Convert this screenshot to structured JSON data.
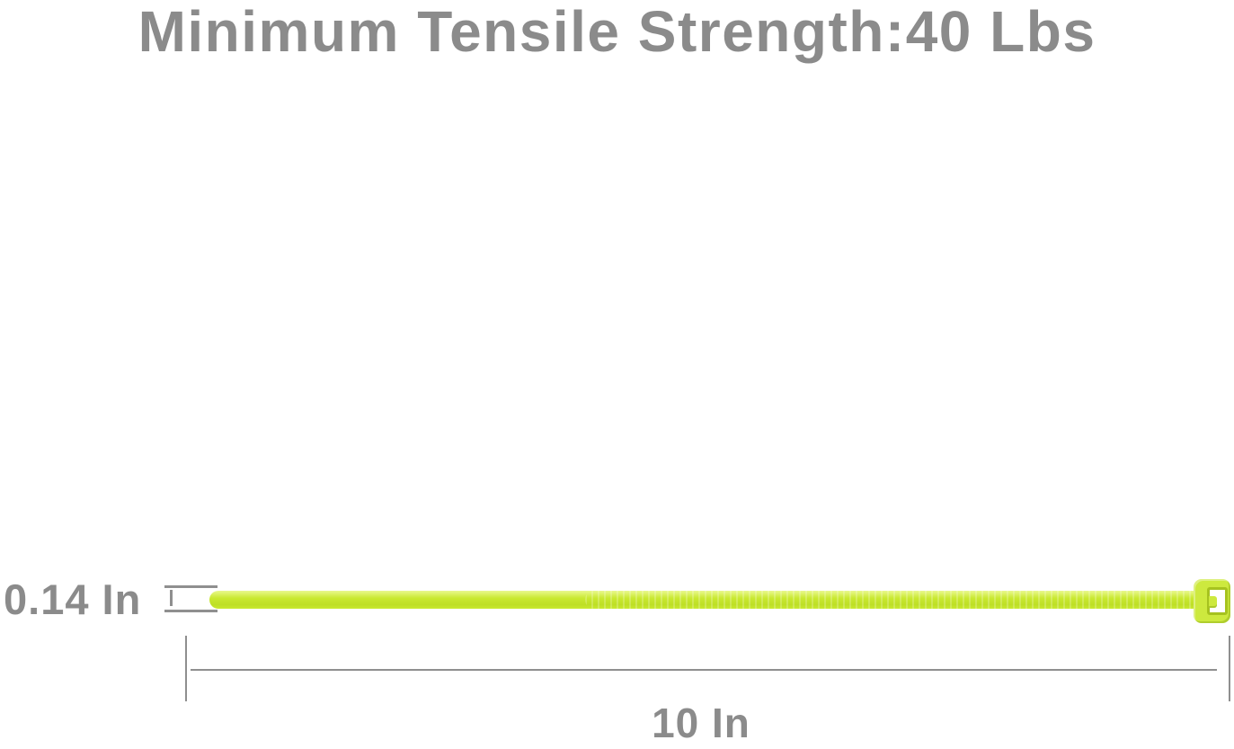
{
  "title": "Minimum Tensile Strength:40 Lbs",
  "dimensions": {
    "width_label": "0.14 In",
    "length_label": "10 In"
  },
  "colors": {
    "background": "#ffffff",
    "text_gray": "#8b8b8b",
    "line_gray": "#8f8f8f",
    "tie_main": "#c9e930",
    "tie_highlight": "#e9f88d",
    "tie_deep": "#bedf26",
    "tie_head": "#cde93e",
    "head_outline": "#a6c21f",
    "slot_white": "#ffffff"
  }
}
